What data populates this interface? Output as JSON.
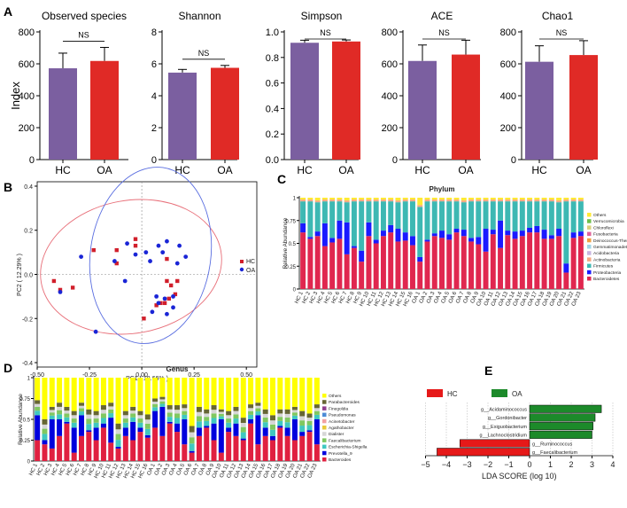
{
  "colors": {
    "hc": "#7b5fa0",
    "oa": "#e02a26",
    "hc_point": "#d11f2b",
    "oa_point": "#1a25d6",
    "ellipse_hc": "#e8707a",
    "ellipse_oa": "#5a6ee0",
    "lda_hc": "#e61919",
    "lda_oa": "#1c8a2a"
  },
  "panel_labels": [
    "A",
    "B",
    "C",
    "D",
    "E"
  ],
  "chart_data": [
    {
      "type": "bar",
      "panel": "A",
      "ylabel": "Index",
      "categories": [
        "HC",
        "OA"
      ],
      "subplots": [
        {
          "title": "Observed species",
          "values": [
            572,
            618
          ],
          "errors": [
            95,
            85
          ],
          "ylim": [
            0,
            800
          ],
          "yticks": [
            0,
            200,
            400,
            600,
            800
          ],
          "tick_labels": [
            "0",
            "200",
            "400",
            "600",
            "800"
          ],
          "annotation": "NS"
        },
        {
          "title": "Shannon",
          "values": [
            5.45,
            5.75
          ],
          "errors": [
            0.2,
            0.15
          ],
          "ylim": [
            0,
            8
          ],
          "yticks": [
            0,
            2,
            4,
            6,
            8
          ],
          "tick_labels": [
            "0",
            "2",
            "4",
            "6",
            "8"
          ],
          "annotation": "NS"
        },
        {
          "title": "Simpson",
          "values": [
            0.915,
            0.925
          ],
          "errors": [
            0.02,
            0.012
          ],
          "ylim": [
            0,
            1.0
          ],
          "yticks": [
            0,
            0.2,
            0.4,
            0.6,
            0.8,
            1.0
          ],
          "tick_labels": [
            "0.0",
            "0.2",
            "0.4",
            "0.6",
            "0.8",
            "1.0"
          ],
          "annotation": "NS"
        },
        {
          "title": "ACE",
          "values": [
            618,
            658
          ],
          "errors": [
            100,
            90
          ],
          "ylim": [
            0,
            800
          ],
          "yticks": [
            0,
            200,
            400,
            600,
            800
          ],
          "tick_labels": [
            "0",
            "200",
            "400",
            "600",
            "800"
          ],
          "annotation": "NS"
        },
        {
          "title": "Chao1",
          "values": [
            613,
            655
          ],
          "errors": [
            100,
            90
          ],
          "ylim": [
            0,
            800
          ],
          "yticks": [
            0,
            200,
            400,
            600,
            800
          ],
          "tick_labels": [
            "0",
            "200",
            "400",
            "600",
            "800"
          ],
          "annotation": "NS"
        }
      ]
    },
    {
      "type": "scatter",
      "panel": "B",
      "xlabel": "PC1 ( 18.66% )",
      "ylabel": "PC2 ( 12.29% )",
      "xlim": [
        -0.5,
        0.55
      ],
      "ylim": [
        -0.42,
        0.42
      ],
      "xticks": [
        -0.5,
        -0.25,
        0,
        0.25,
        0.5
      ],
      "xtick_labels": [
        "-0.50",
        "-0.25",
        "0.00",
        "0.25",
        "0.50"
      ],
      "yticks": [
        -0.4,
        -0.2,
        0,
        0.2,
        0.4
      ],
      "ytick_labels": [
        "-0.4",
        "-0.2",
        "0.0",
        "0.2",
        "0.4"
      ],
      "legend": [
        "HC",
        "OA"
      ],
      "series": [
        {
          "name": "HC",
          "marker": "square",
          "points": [
            [
              -0.42,
              -0.03
            ],
            [
              -0.39,
              -0.07
            ],
            [
              -0.33,
              -0.06
            ],
            [
              -0.23,
              0.11
            ],
            [
              -0.12,
              0.05
            ],
            [
              -0.12,
              0.11
            ],
            [
              -0.03,
              0.16
            ],
            [
              -0.03,
              0.13
            ],
            [
              0.12,
              0.07
            ],
            [
              0.12,
              -0.03
            ],
            [
              0.14,
              -0.05
            ],
            [
              0.17,
              -0.03
            ],
            [
              0.16,
              -0.09
            ],
            [
              0.13,
              -0.11
            ],
            [
              0.11,
              -0.13
            ],
            [
              0.09,
              -0.13
            ],
            [
              0.07,
              -0.14
            ],
            [
              0.01,
              -0.2
            ]
          ]
        },
        {
          "name": "OA",
          "marker": "circle",
          "points": [
            [
              -0.29,
              0.08
            ],
            [
              -0.07,
              0.14
            ],
            [
              -0.03,
              0.09
            ],
            [
              -0.13,
              0.06
            ],
            [
              0.02,
              0.1
            ],
            [
              0.04,
              0.06
            ],
            [
              0.12,
              0.15
            ],
            [
              0.08,
              0.13
            ],
            [
              0.1,
              0.1
            ],
            [
              0.18,
              0.13
            ],
            [
              0.21,
              0.08
            ],
            [
              0.17,
              0.05
            ],
            [
              0.15,
              -0.1
            ],
            [
              0.11,
              -0.11
            ],
            [
              0.08,
              -0.13
            ],
            [
              0.07,
              -0.1
            ],
            [
              0.05,
              -0.17
            ],
            [
              0.12,
              -0.18
            ],
            [
              0.15,
              -0.15
            ],
            [
              -0.22,
              -0.26
            ],
            [
              -0.08,
              -0.03
            ],
            [
              -0.39,
              -0.08
            ]
          ]
        }
      ]
    },
    {
      "type": "bar",
      "subtype": "stacked",
      "panel": "C",
      "title": "Phylum",
      "ylabel": "Relative Abundance",
      "ylim": [
        0,
        1
      ],
      "yticks": [
        0,
        0.25,
        0.5,
        0.75,
        1
      ],
      "ytick_labels": [
        "0",
        "0.25",
        "0.5",
        "0.75",
        "1"
      ],
      "categories": [
        "HC_1",
        "HC_2",
        "HC_3",
        "HC_4",
        "HC_5",
        "HC_6",
        "HC_7",
        "HC_8",
        "HC_9",
        "HC_10",
        "HC_11",
        "HC_12",
        "HC_13",
        "HC_14",
        "HC_15",
        "HC_16",
        "OA_1",
        "OA_2",
        "OA_3",
        "OA_4",
        "OA_5",
        "OA_6",
        "OA_7",
        "OA_8",
        "OA_9",
        "OA_10",
        "OA_11",
        "OA_12",
        "OA_13",
        "OA_14",
        "OA_15",
        "OA_16",
        "OA_17",
        "OA_18",
        "OA_19",
        "OA_20",
        "OA_21",
        "OA_22",
        "OA_23"
      ],
      "legend": [
        "Others",
        "Verrucomicrobia",
        "Chloroflexi",
        "Fusobacteria",
        "Deinococcus-Thermus",
        "Gemmatimonadetes",
        "Acidobacteria",
        "Actinobacteria",
        "Firmicutes",
        "Proteobacteria",
        "Bacteroidetes"
      ],
      "series_colors": [
        "#ffea33",
        "#6ebf4a",
        "#d9d07a",
        "#e0649a",
        "#f0a040",
        "#9fd6e6",
        "#c8b4e0",
        "#f5a882",
        "#3db8b3",
        "#1a1aff",
        "#e0274f"
      ],
      "bacteroidetes": [
        0.62,
        0.55,
        0.58,
        0.47,
        0.51,
        0.55,
        0.38,
        0.45,
        0.3,
        0.58,
        0.5,
        0.58,
        0.62,
        0.52,
        0.53,
        0.48,
        0.3,
        0.52,
        0.58,
        0.56,
        0.54,
        0.62,
        0.58,
        0.52,
        0.49,
        0.41,
        0.6,
        0.45,
        0.59,
        0.55,
        0.58,
        0.62,
        0.62,
        0.55,
        0.55,
        0.58,
        0.18,
        0.56,
        0.58
      ],
      "proteobacteria": [
        0.1,
        0.02,
        0.05,
        0.25,
        0.05,
        0.2,
        0.35,
        0.02,
        0.12,
        0.15,
        0.04,
        0.06,
        0.08,
        0.14,
        0.09,
        0.1,
        0.05,
        0.02,
        0.03,
        0.08,
        0.06,
        0.04,
        0.07,
        0.04,
        0.08,
        0.25,
        0.05,
        0.3,
        0.05,
        0.08,
        0.06,
        0.05,
        0.07,
        0.1,
        0.04,
        0.08,
        0.1,
        0.06,
        0.05
      ],
      "others": [
        0.02,
        0.02,
        0.03,
        0.02,
        0.02,
        0.02,
        0.03,
        0.02,
        0.02,
        0.02,
        0.02,
        0.02,
        0.02,
        0.03,
        0.02,
        0.02,
        0.08,
        0.02,
        0.02,
        0.02,
        0.02,
        0.02,
        0.03,
        0.02,
        0.02,
        0.02,
        0.02,
        0.02,
        0.02,
        0.02,
        0.02,
        0.02,
        0.02,
        0.02,
        0.02,
        0.03,
        0.02,
        0.02,
        0.02
      ]
    },
    {
      "type": "bar",
      "subtype": "stacked",
      "panel": "D",
      "title": "Genus",
      "ylabel": "Relative Abundance",
      "ylim": [
        0,
        1
      ],
      "yticks": [
        0,
        0.25,
        0.5,
        0.75,
        1
      ],
      "ytick_labels": [
        "0",
        "0.25",
        "0.5",
        "0.75",
        "1"
      ],
      "categories": [
        "HC_1",
        "HC_2",
        "HC_3",
        "HC_4",
        "HC_5",
        "HC_6",
        "HC_7",
        "HC_8",
        "HC_9",
        "HC_10",
        "HC_11",
        "HC_12",
        "HC_13",
        "HC_14",
        "HC_15",
        "HC_16",
        "OA_1",
        "OA_2",
        "OA_3",
        "OA_4",
        "OA_5",
        "OA_6",
        "OA_7",
        "OA_8",
        "OA_9",
        "OA_10",
        "OA_11",
        "OA_12",
        "OA_13",
        "OA_14",
        "OA_15",
        "OA_16",
        "OA_17",
        "OA_18",
        "OA_19",
        "OA_20",
        "OA_21",
        "OA_22",
        "OA_23"
      ],
      "legend": [
        "Others",
        "Parabacteroides",
        "Finegoldia",
        "Pseudomonas",
        "Acinetobacter",
        "Agathobacter",
        "Dialister",
        "Faecalibacterium",
        "Escherichia-Shigella",
        "Prevotella_9",
        "Bacteroides"
      ],
      "series_colors": [
        "#ffff00",
        "#666633",
        "#8f3f8f",
        "#4d8bd6",
        "#f2a0a0",
        "#e8c93a",
        "#d6d6d6",
        "#80c860",
        "#40c8c0",
        "#0000dd",
        "#e02040"
      ],
      "bacteroides": [
        0.25,
        0.2,
        0.15,
        0.3,
        0.45,
        0.1,
        0.3,
        0.35,
        0.25,
        0.4,
        0.22,
        0.15,
        0.3,
        0.25,
        0.35,
        0.28,
        0.4,
        0.3,
        0.45,
        0.35,
        0.2,
        0.1,
        0.3,
        0.4,
        0.25,
        0.1,
        0.35,
        0.3,
        0.25,
        0.45,
        0.2,
        0.3,
        0.25,
        0.4,
        0.3,
        0.25,
        0.3,
        0.35,
        0.2
      ],
      "prevotella": [
        0.3,
        0.05,
        0.35,
        0.2,
        0.02,
        0.3,
        0.25,
        0.02,
        0.15,
        0.05,
        0.3,
        0.02,
        0.1,
        0.22,
        0.05,
        0.03,
        0.2,
        0.35,
        0.02,
        0.1,
        0.3,
        0.02,
        0.1,
        0.02,
        0.2,
        0.4,
        0.05,
        0.15,
        0.02,
        0.05,
        0.35,
        0.1,
        0.05,
        0.02,
        0.1,
        0.25,
        0.05,
        0.02,
        0.3
      ],
      "middle": [
        0.18,
        0.25,
        0.15,
        0.2,
        0.18,
        0.2,
        0.15,
        0.25,
        0.2,
        0.22,
        0.18,
        0.28,
        0.2,
        0.18,
        0.2,
        0.25,
        0.15,
        0.12,
        0.2,
        0.22,
        0.18,
        0.3,
        0.25,
        0.2,
        0.22,
        0.12,
        0.2,
        0.2,
        0.25,
        0.18,
        0.15,
        0.22,
        0.25,
        0.2,
        0.22,
        0.15,
        0.25,
        0.2,
        0.18
      ]
    },
    {
      "type": "bar",
      "subtype": "horizontal",
      "panel": "E",
      "xlabel": "LDA SCORE (log 10)",
      "xlim": [
        -5,
        4
      ],
      "xticks": [
        -5,
        -4,
        -3,
        -2,
        -1,
        0,
        1,
        2,
        3,
        4
      ],
      "xtick_labels": [
        "−5",
        "−4",
        "−3",
        "−2",
        "−1",
        "0",
        "1",
        "2",
        "3",
        "4"
      ],
      "legend": [
        "HC",
        "OA"
      ],
      "bars": [
        {
          "label": "g__Acidaminococcus",
          "value": 3.45,
          "group": "OA"
        },
        {
          "label": "g__Gordonibacter",
          "value": 3.15,
          "group": "OA"
        },
        {
          "label": "g__Exiguobacterium",
          "value": 3.05,
          "group": "OA"
        },
        {
          "label": "g__Lachnoclostridium",
          "value": 3.0,
          "group": "OA"
        },
        {
          "label": "g__Ruminococcus",
          "value": -3.35,
          "group": "HC"
        },
        {
          "label": "g__Faecalibacterium",
          "value": -4.45,
          "group": "HC"
        }
      ]
    }
  ]
}
